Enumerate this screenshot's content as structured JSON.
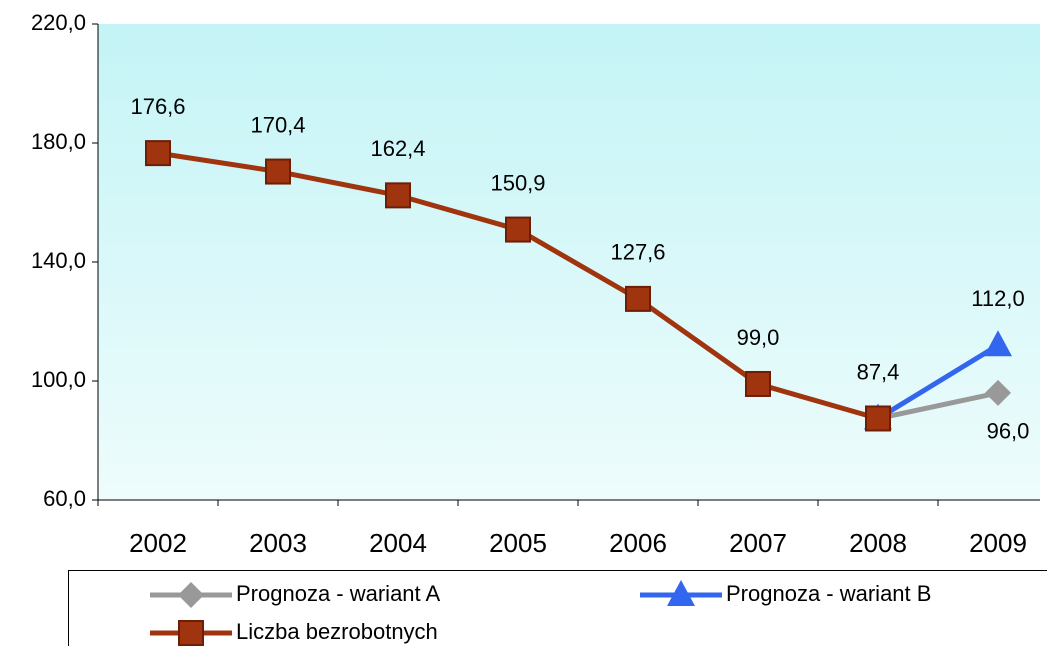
{
  "chart_data": {
    "type": "line",
    "categories": [
      "2002",
      "2003",
      "2004",
      "2005",
      "2006",
      "2007",
      "2008",
      "2009"
    ],
    "series": [
      {
        "name": "Prognoza - wariant A",
        "color": "#999999",
        "marker": "diamond",
        "values": [
          null,
          null,
          null,
          null,
          null,
          null,
          87.4,
          96.0
        ],
        "value_labels": [
          null,
          null,
          null,
          null,
          null,
          null,
          null,
          "96,0"
        ]
      },
      {
        "name": "Prognoza - wariant B",
        "color": "#3366ee",
        "marker": "triangle",
        "values": [
          null,
          null,
          null,
          null,
          null,
          null,
          87.4,
          112.0
        ],
        "value_labels": [
          null,
          null,
          null,
          null,
          null,
          null,
          null,
          "112,0"
        ]
      },
      {
        "name": "Liczba bezrobotnych",
        "color": "#a0340f",
        "marker": "square",
        "values": [
          176.6,
          170.4,
          162.4,
          150.9,
          127.6,
          99.0,
          87.4,
          null
        ],
        "value_labels": [
          "176,6",
          "170,4",
          "162,4",
          "150,9",
          "127,6",
          "99,0",
          "87,4",
          null
        ]
      }
    ],
    "ylim": [
      60,
      220
    ],
    "yticks": [
      {
        "value": 60,
        "label": "60,0"
      },
      {
        "value": 100,
        "label": "100,0"
      },
      {
        "value": 140,
        "label": "140,0"
      },
      {
        "value": 180,
        "label": "180,0"
      },
      {
        "value": 220,
        "label": "220,0"
      }
    ],
    "grid": false
  }
}
